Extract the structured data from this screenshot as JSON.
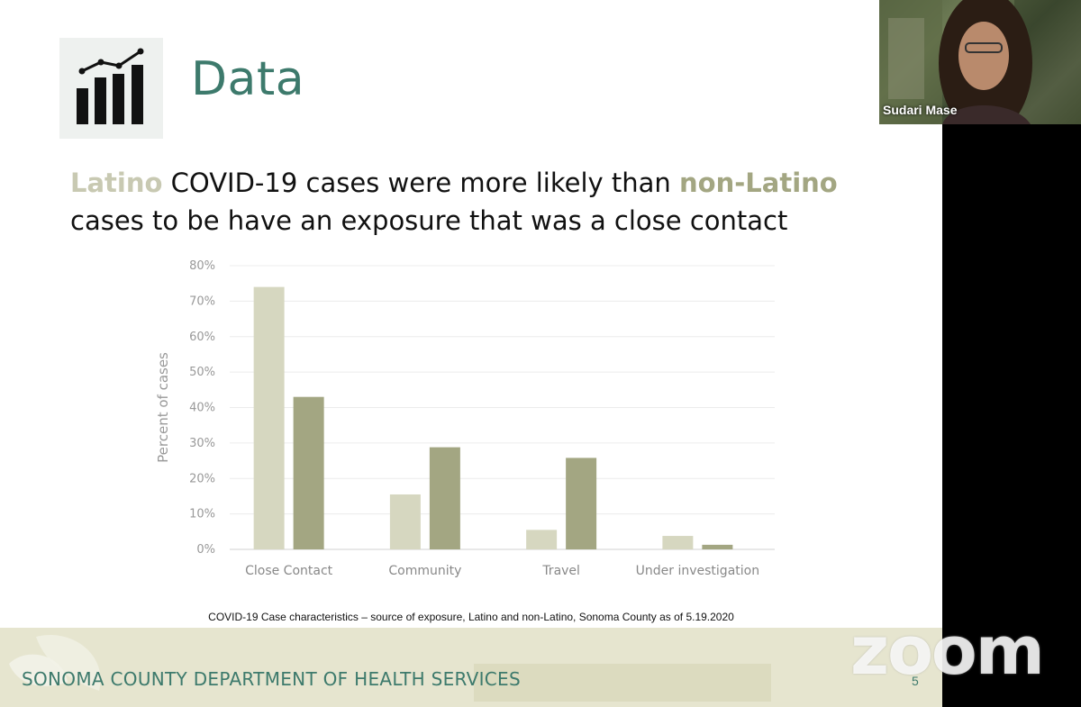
{
  "slide": {
    "title": "Data",
    "headline": {
      "part1": "Latino",
      "part2": " COVID-19 cases were more likely than ",
      "part3": "non-Latino",
      "part4": "cases to be have an exposure that was a close contact"
    },
    "caption": "COVID-19 Case characteristics – source of exposure, Latino and non-Latino, Sonoma County as of 5.19.2020",
    "footer_org": "SONOMA COUNTY DEPARTMENT OF HEALTH SERVICES",
    "page_number": "5",
    "icon": "bar-chart-trend-icon"
  },
  "chart_data": {
    "type": "bar",
    "categories": [
      "Close Contact",
      "Community",
      "Travel",
      "Under investigation"
    ],
    "series": [
      {
        "values": [
          74,
          15.5,
          5.5,
          3.8
        ],
        "color": "#d6d7c0"
      },
      {
        "values": [
          43,
          28.8,
          25.8,
          1.3
        ],
        "color": "#a3a682"
      }
    ],
    "y_ticks": [
      "0%",
      "10%",
      "20%",
      "30%",
      "40%",
      "50%",
      "60%",
      "70%",
      "80%"
    ],
    "ylabel": "Percent of cases",
    "ylim": [
      0,
      80
    ],
    "grid": true
  },
  "video": {
    "participant_name": "Sudari Mase"
  },
  "overlay": {
    "logo_text": "zoom"
  },
  "colors": {
    "accent": "#3d7a6c",
    "latino": "#c8c9b2",
    "non_latino": "#a3a682",
    "footer": "#e6e5cf"
  }
}
